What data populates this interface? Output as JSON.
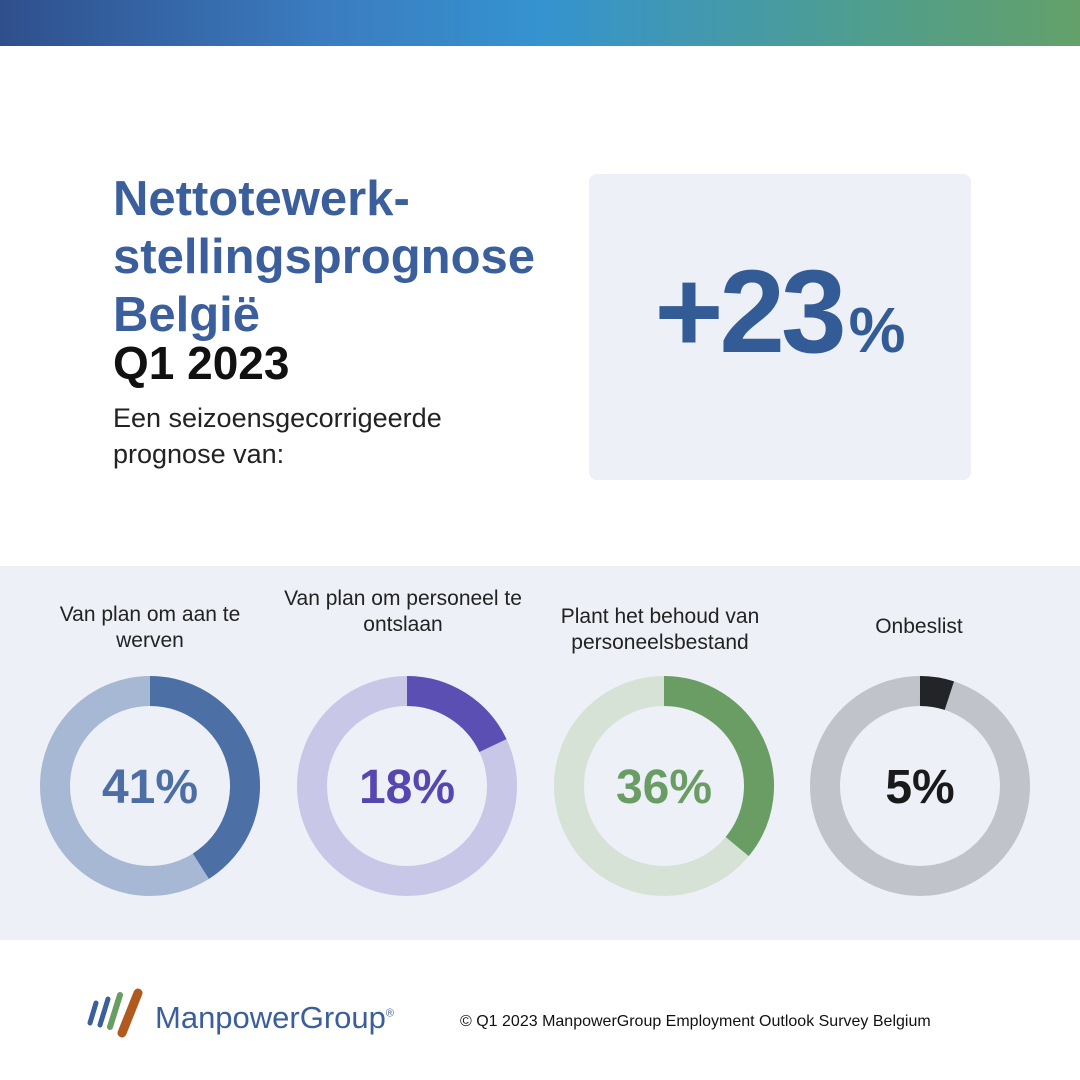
{
  "header": {
    "title_lines": [
      "Nettotewerk-",
      "stellingsprognose",
      "België"
    ],
    "quarter": "Q1 2023",
    "subtitle": "Een seizoensgecorrigeerde prognose van:"
  },
  "forecast": {
    "value": "+23",
    "unit": "%"
  },
  "chart_data": {
    "type": "pie",
    "variant": "donut",
    "charts": [
      {
        "label": "Van plan om aan te werven",
        "value": 41,
        "display": "41%",
        "color": "#4c6fa5",
        "track_color": "#a7b8d4",
        "text_color": "#4d6ea5"
      },
      {
        "label": "Van plan om personeel te ontslaan",
        "value": 18,
        "display": "18%",
        "color": "#5b4fb3",
        "track_color": "#c8c7e8",
        "text_color": "#5647b0"
      },
      {
        "label": "Plant het behoud van personeelsbestand",
        "value": 36,
        "display": "36%",
        "color": "#6a9d64",
        "track_color": "#d6e2d6",
        "text_color": "#6a9d64"
      },
      {
        "label": "Onbeslist",
        "value": 5,
        "display": "5%",
        "color": "#222427",
        "track_color": "#c0c3c9",
        "text_color": "#1a1a1a"
      }
    ]
  },
  "footer": {
    "logo_text": "ManpowerGroup",
    "logo_mark": "®",
    "copyright": "© Q1 2023 ManpowerGroup Employment Outlook Survey Belgium"
  },
  "colors": {
    "brand_blue": "#3a5f9c",
    "panel_bg": "#edf0f6"
  }
}
